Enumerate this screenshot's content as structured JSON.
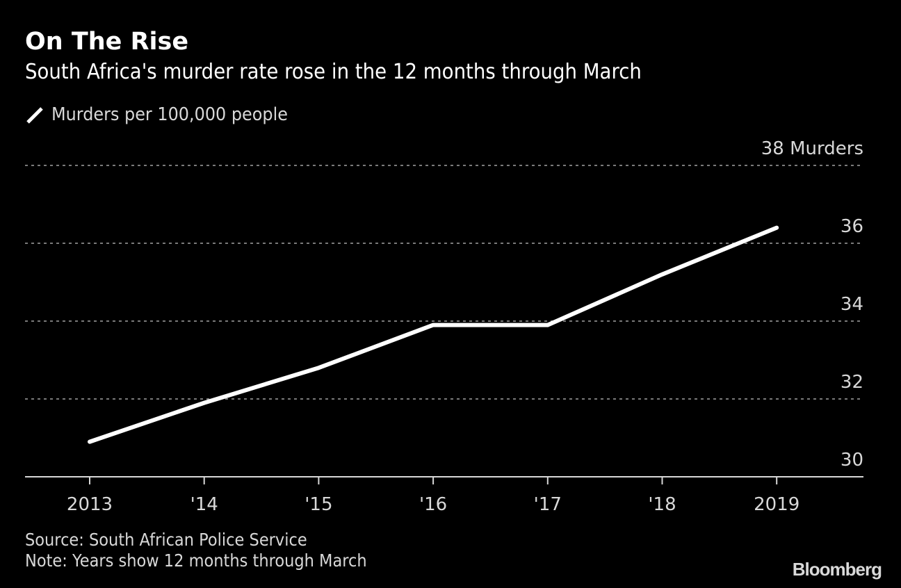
{
  "header": {
    "title": "On The Rise",
    "subtitle": "South Africa's murder rate rose in the 12 months through March"
  },
  "legend": {
    "items": [
      {
        "label": "Murders per 100,000 people",
        "color": "#ffffff",
        "icon": "line-swatch-icon"
      }
    ]
  },
  "footer": {
    "source": "Source: South African Police Service",
    "note": "Note: Years show 12 months through March",
    "brand": "Bloomberg"
  },
  "chart_data": {
    "type": "line",
    "title": "On The Rise",
    "subtitle": "South Africa's murder rate rose in the 12 months through March",
    "xlabel": "",
    "ylabel": "Murders per 100,000 people",
    "categories": [
      "2013",
      "'14",
      "'15",
      "'16",
      "'17",
      "'18",
      "2019"
    ],
    "series": [
      {
        "name": "Murders per 100,000 people",
        "color": "#ffffff",
        "values": [
          30.9,
          31.9,
          32.8,
          33.9,
          33.9,
          35.2,
          36.4
        ]
      }
    ],
    "ylim": [
      30,
      38
    ],
    "yticks": [
      30,
      32,
      34,
      36,
      38
    ],
    "ytick_labels": [
      "30",
      "32",
      "34",
      "36",
      "38 Murders"
    ],
    "grid": true,
    "y_axis_position": "right",
    "legend_position": "top-left",
    "background": "#000000",
    "gridline_color": "#7a7a7a",
    "axis_color": "#d8d8d8"
  }
}
